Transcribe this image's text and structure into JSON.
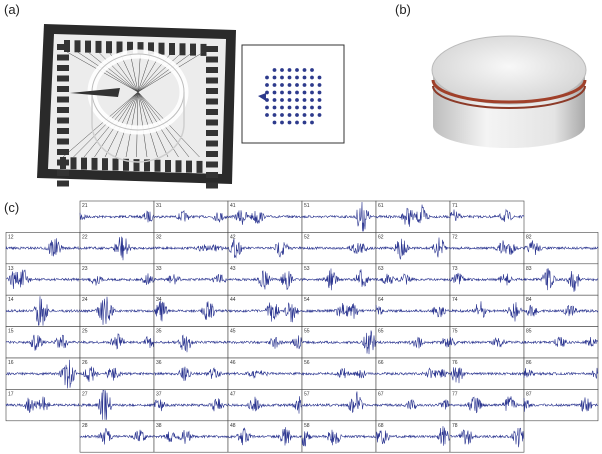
{
  "panels": {
    "a": "(a)",
    "b": "(b)",
    "c": "(c)"
  },
  "channels": [
    [
      "21",
      "31",
      "41",
      "51",
      "61",
      "71"
    ],
    [
      "12",
      "22",
      "32",
      "42",
      "52",
      "62",
      "72",
      "82"
    ],
    [
      "13",
      "23",
      "33",
      "43",
      "53",
      "63",
      "73",
      "83"
    ],
    [
      "14",
      "24",
      "34",
      "44",
      "54",
      "64",
      "74",
      "84"
    ],
    [
      "15",
      "25",
      "35",
      "45",
      "55",
      "65",
      "75",
      "85"
    ],
    [
      "16",
      "26",
      "36",
      "46",
      "56",
      "66",
      "76",
      "86"
    ],
    [
      "17",
      "27",
      "37",
      "47",
      "57",
      "67",
      "77",
      "87"
    ],
    [
      "28",
      "38",
      "48",
      "58",
      "68",
      "78"
    ]
  ]
}
